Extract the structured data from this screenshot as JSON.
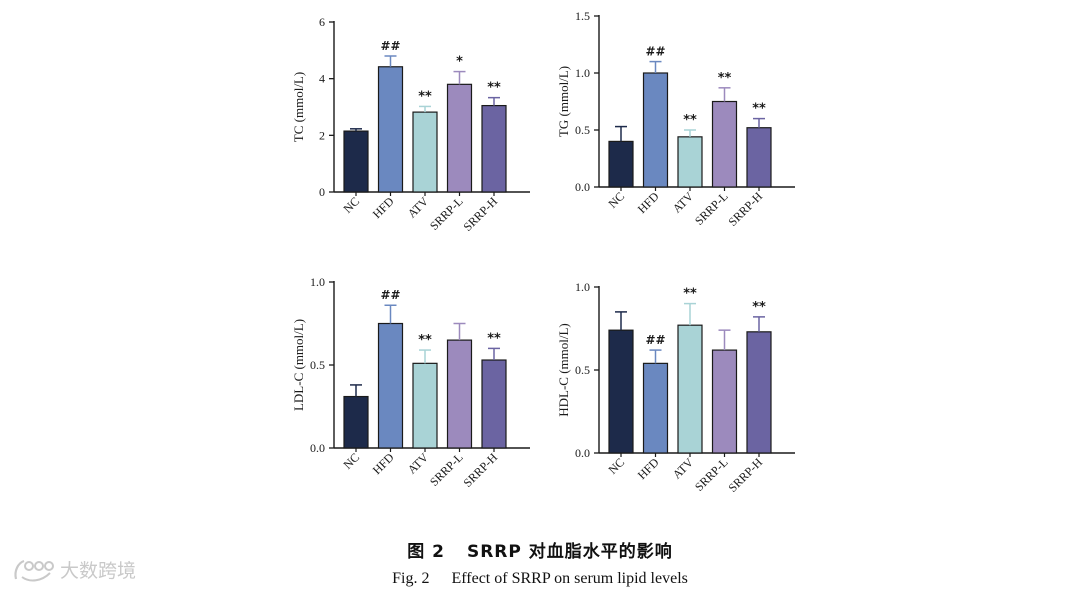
{
  "chart_data": [
    {
      "type": "bar",
      "ylabel": "TC (mmol/L)",
      "categories": [
        "NC",
        "HFD",
        "ATV",
        "SRRP-L",
        "SRRP-H"
      ],
      "values": [
        2.15,
        4.42,
        2.82,
        3.8,
        3.05
      ],
      "errors": [
        0.08,
        0.38,
        0.2,
        0.45,
        0.28
      ],
      "annotations": [
        "",
        "##",
        "**",
        "*",
        "**"
      ],
      "ylim": [
        0,
        6
      ],
      "yticks": [
        "0",
        "2",
        "4",
        "6"
      ],
      "grid": false
    },
    {
      "type": "bar",
      "ylabel": "TG (mmol/L)",
      "categories": [
        "NC",
        "HFD",
        "ATV",
        "SRRP-L",
        "SRRP-H"
      ],
      "values": [
        0.4,
        1.0,
        0.44,
        0.75,
        0.52
      ],
      "errors": [
        0.13,
        0.1,
        0.06,
        0.12,
        0.08
      ],
      "annotations": [
        "",
        "##",
        "**",
        "**",
        "**"
      ],
      "ylim": [
        0,
        1.5
      ],
      "yticks": [
        "0.0",
        "0.5",
        "1.0",
        "1.5"
      ],
      "grid": false
    },
    {
      "type": "bar",
      "ylabel": "LDL-C (mmol/L)",
      "categories": [
        "NC",
        "HFD",
        "ATV",
        "SRRP-L",
        "SRRP-H"
      ],
      "values": [
        0.31,
        0.75,
        0.51,
        0.65,
        0.53
      ],
      "errors": [
        0.07,
        0.11,
        0.08,
        0.1,
        0.07
      ],
      "annotations": [
        "",
        "##",
        "**",
        "",
        "**"
      ],
      "ylim": [
        0,
        1.0
      ],
      "yticks": [
        "0.0",
        "0.5",
        "1.0"
      ],
      "grid": false
    },
    {
      "type": "bar",
      "ylabel": "HDL-C (mmol/L)",
      "categories": [
        "NC",
        "HFD",
        "ATV",
        "SRRP-L",
        "SRRP-H"
      ],
      "values": [
        0.74,
        0.54,
        0.77,
        0.62,
        0.73
      ],
      "errors": [
        0.11,
        0.08,
        0.13,
        0.12,
        0.09
      ],
      "annotations": [
        "",
        "##",
        "**",
        "",
        "**"
      ],
      "ylim": [
        0,
        1.0
      ],
      "yticks": [
        "0.0",
        "0.5",
        "1.0"
      ],
      "grid": false
    }
  ],
  "colors": [
    "#1d2a4a",
    "#6a88c0",
    "#a9d3d6",
    "#9c8abd",
    "#6b64a2"
  ],
  "caption": {
    "zh_label": "图 2",
    "zh_text": "SRRP 对血脂水平的影响",
    "en_label": "Fig. 2",
    "en_text": "Effect of SRRP on serum lipid levels"
  },
  "watermark": {
    "icon": "watermark-logo-icon",
    "text": "大数跨境"
  }
}
